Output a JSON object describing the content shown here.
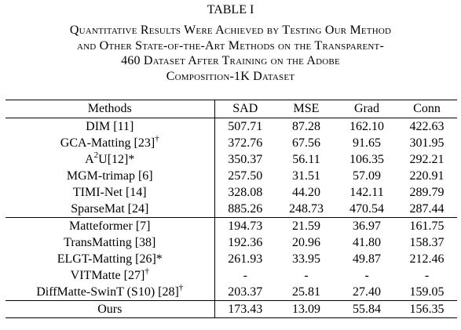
{
  "table_label": "TABLE I",
  "caption_lines": [
    "Quantitative Results Were Achieved by Testing Our Method",
    "and Other State-of-the-Art Methods on the Transparent-",
    "460 Dataset After Training on the Adobe",
    "Composition-1K Dataset"
  ],
  "columns": [
    "Methods",
    "SAD",
    "MSE",
    "Grad",
    "Conn"
  ],
  "groups": [
    {
      "rows": [
        {
          "method": "DIM [11]",
          "sup": "",
          "values": [
            "507.71",
            "87.28",
            "162.10",
            "422.63"
          ],
          "bold": [
            false,
            false,
            false,
            false
          ]
        },
        {
          "method": "GCA-Matting [23]",
          "sup": "†",
          "values": [
            "372.76",
            "67.56",
            "91.65",
            "301.95"
          ],
          "bold": [
            false,
            false,
            false,
            false
          ]
        },
        {
          "method_parts": [
            "A",
            "2",
            "U[12]*"
          ],
          "method": "A2U[12]*",
          "sup": "",
          "values": [
            "350.37",
            "56.11",
            "106.35",
            "292.21"
          ],
          "bold": [
            false,
            false,
            false,
            false
          ]
        },
        {
          "method": "MGM-trimap [6]",
          "sup": "",
          "values": [
            "257.50",
            "31.51",
            "57.09",
            "220.91"
          ],
          "bold": [
            false,
            false,
            false,
            false
          ]
        },
        {
          "method": "TIMI-Net [14]",
          "sup": "",
          "values": [
            "328.08",
            "44.20",
            "142.11",
            "289.79"
          ],
          "bold": [
            false,
            false,
            false,
            false
          ]
        },
        {
          "method": "SparseMat [24]",
          "sup": "",
          "values": [
            "885.26",
            "248.73",
            "470.54",
            "287.44"
          ],
          "bold": [
            false,
            false,
            false,
            false
          ]
        }
      ]
    },
    {
      "rows": [
        {
          "method": "Matteformer [7]",
          "sup": "",
          "values": [
            "194.73",
            "21.59",
            "36.97",
            "161.75"
          ],
          "bold": [
            false,
            false,
            false,
            false
          ]
        },
        {
          "method": "TransMatting [38]",
          "sup": "",
          "values": [
            "192.36",
            "20.96",
            "41.80",
            "158.37"
          ],
          "bold": [
            false,
            false,
            false,
            false
          ]
        },
        {
          "method": "ELGT-Matting [26]*",
          "sup": "",
          "values": [
            "261.93",
            "33.95",
            "49.87",
            "212.46"
          ],
          "bold": [
            false,
            false,
            false,
            false
          ]
        },
        {
          "method": "VITMatte [27]",
          "sup": "†",
          "values": [
            "-",
            "-",
            "-",
            "-"
          ],
          "bold": [
            true,
            false,
            false,
            false
          ]
        },
        {
          "method": "DiffMatte-SwinT (S10) [28]",
          "sup": "†",
          "values": [
            "203.37",
            "25.81",
            "27.40",
            "159.05"
          ],
          "bold": [
            false,
            false,
            true,
            false
          ]
        }
      ]
    },
    {
      "rows": [
        {
          "method": "Ours",
          "sup": "",
          "values": [
            "173.43",
            "13.09",
            "55.84",
            "156.35"
          ],
          "bold": [
            true,
            true,
            false,
            true
          ]
        }
      ]
    }
  ]
}
